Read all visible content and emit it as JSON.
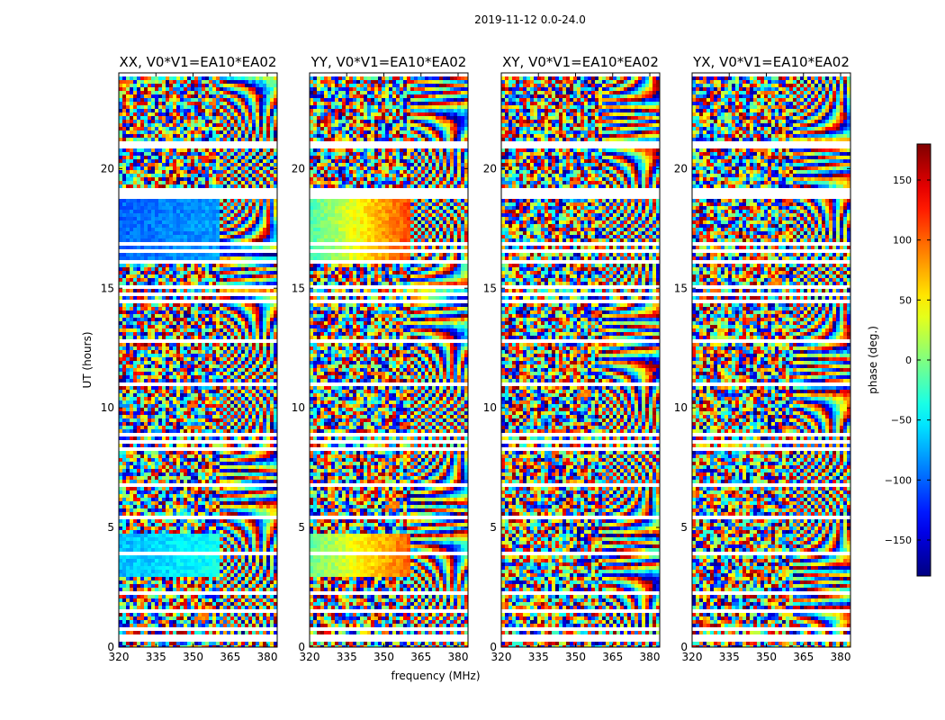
{
  "figure": {
    "suptitle": "2019-11-12 0.0-24.0",
    "xlabel": "frequency (MHz)",
    "ylabel": "UT (hours)"
  },
  "colorbar": {
    "label": "phase (deg.)",
    "range": [
      -180,
      180
    ],
    "ticks": [
      150,
      100,
      50,
      0,
      -50,
      -100,
      -150
    ],
    "tick_labels": [
      "150",
      "100",
      "50",
      "0",
      "−50",
      "−100",
      "−150"
    ],
    "colormap": "jet"
  },
  "chart_data": [
    {
      "type": "heatmap",
      "title": "XX, V0*V1=EA10*EA02",
      "xlim": [
        320,
        384
      ],
      "ylim": [
        0,
        24
      ],
      "xticks": [
        320,
        335,
        350,
        365,
        380
      ],
      "yticks": [
        0,
        5,
        10,
        15,
        20
      ],
      "value": "phase (deg.)",
      "smooth_blocks": [
        {
          "t_start": 16.0,
          "t_end": 18.8,
          "f_start": 320,
          "f_end": 360,
          "phase_start": -100,
          "phase_end": -80
        },
        {
          "t_start": 3.0,
          "t_end": 4.7,
          "f_start": 320,
          "f_end": 360,
          "phase_start": -70,
          "phase_end": -40
        }
      ]
    },
    {
      "type": "heatmap",
      "title": "YY, V0*V1=EA10*EA02",
      "xlim": [
        320,
        384
      ],
      "ylim": [
        0,
        24
      ],
      "xticks": [
        320,
        335,
        350,
        365,
        380
      ],
      "yticks": [
        0,
        5,
        10,
        15,
        20
      ],
      "value": "phase (deg.)",
      "smooth_blocks": [
        {
          "t_start": 16.0,
          "t_end": 18.8,
          "f_start": 320,
          "f_end": 360,
          "phase_start": -20,
          "phase_end": 110
        },
        {
          "t_start": 3.0,
          "t_end": 4.7,
          "f_start": 320,
          "f_end": 360,
          "phase_start": -10,
          "phase_end": 100
        }
      ]
    },
    {
      "type": "heatmap",
      "title": "XY, V0*V1=EA10*EA02",
      "xlim": [
        320,
        384
      ],
      "ylim": [
        0,
        24
      ],
      "xticks": [
        320,
        335,
        350,
        365,
        380
      ],
      "yticks": [
        0,
        5,
        10,
        15,
        20
      ],
      "value": "phase (deg.)",
      "smooth_blocks": []
    },
    {
      "type": "heatmap",
      "title": "YX, V0*V1=EA10*EA02",
      "xlim": [
        320,
        384
      ],
      "ylim": [
        0,
        24
      ],
      "xticks": [
        320,
        335,
        350,
        365,
        380
      ],
      "yticks": [
        0,
        5,
        10,
        15,
        20
      ],
      "value": "phase (deg.)",
      "smooth_blocks": []
    }
  ]
}
